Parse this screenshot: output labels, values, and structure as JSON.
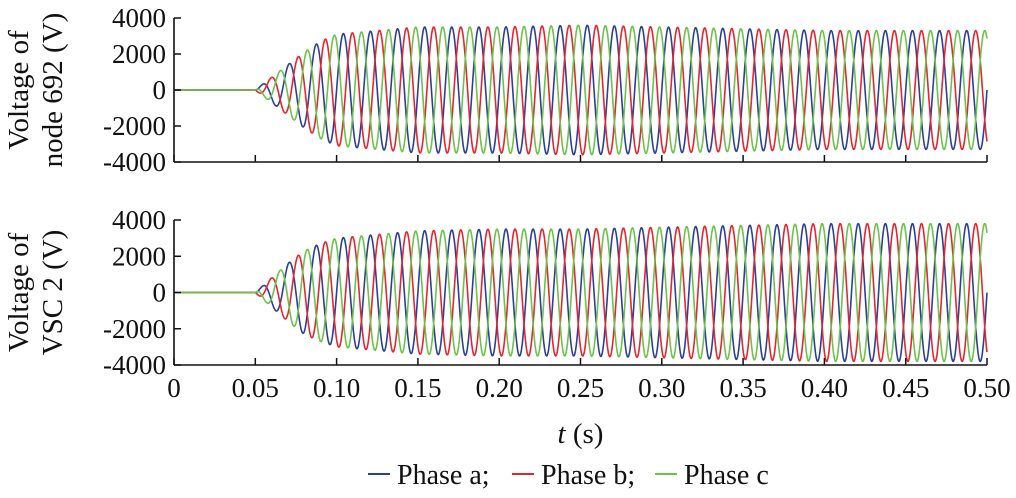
{
  "chart_data": [
    {
      "type": "line",
      "ylabel_lines": [
        "Voltage of",
        "node 692 (V)"
      ],
      "xlim": [
        0,
        0.5
      ],
      "ylim": [
        -4000,
        4000
      ],
      "yticks": [
        -4000,
        -2000,
        0,
        2000,
        4000
      ],
      "ytick_labels": [
        "-4000",
        "-2000",
        "0",
        "2000",
        "4000"
      ],
      "xticks": [
        0,
        0.05,
        0.1,
        0.15,
        0.2,
        0.25,
        0.3,
        0.35,
        0.4,
        0.45,
        0.5
      ],
      "show_xtick_labels": false,
      "grid": false,
      "waveform": {
        "frequency_hz": 60,
        "start_time_s": 0.05,
        "envelope": [
          [
            0.05,
            0
          ],
          [
            0.06,
            700
          ],
          [
            0.07,
            1400
          ],
          [
            0.08,
            2100
          ],
          [
            0.09,
            2700
          ],
          [
            0.1,
            3100
          ],
          [
            0.15,
            3500
          ],
          [
            0.2,
            3500
          ],
          [
            0.25,
            3600
          ],
          [
            0.3,
            3500
          ],
          [
            0.35,
            3400
          ],
          [
            0.4,
            3300
          ],
          [
            0.45,
            3300
          ],
          [
            0.5,
            3300
          ]
        ]
      },
      "series": [
        {
          "name": "Phase a",
          "phase_deg": 0,
          "color": "#2b3f98"
        },
        {
          "name": "Phase b",
          "phase_deg": -120,
          "color": "#e3262f"
        },
        {
          "name": "Phase c",
          "phase_deg": 120,
          "color": "#6cc24a"
        }
      ]
    },
    {
      "type": "line",
      "ylabel_lines": [
        "Voltage of",
        "VSC 2 (V)"
      ],
      "xlabel_var": "t",
      "xlabel_unit": " (s)",
      "xlim": [
        0,
        0.5
      ],
      "ylim": [
        -4000,
        4000
      ],
      "yticks": [
        -4000,
        -2000,
        0,
        2000,
        4000
      ],
      "ytick_labels": [
        "-4000",
        "-2000",
        "0",
        "2000",
        "4000"
      ],
      "xticks": [
        0,
        0.05,
        0.1,
        0.15,
        0.2,
        0.25,
        0.3,
        0.35,
        0.4,
        0.45,
        0.5
      ],
      "xtick_labels": [
        "0",
        "0.05",
        "0.10",
        "0.15",
        "0.20",
        "0.25",
        "0.30",
        "0.35",
        "0.40",
        "0.45",
        "0.50"
      ],
      "show_xtick_labels": true,
      "grid": false,
      "waveform": {
        "frequency_hz": 60,
        "start_time_s": 0.05,
        "envelope": [
          [
            0.05,
            0
          ],
          [
            0.06,
            800
          ],
          [
            0.07,
            1600
          ],
          [
            0.08,
            2300
          ],
          [
            0.09,
            2700
          ],
          [
            0.1,
            3000
          ],
          [
            0.15,
            3400
          ],
          [
            0.2,
            3500
          ],
          [
            0.25,
            3500
          ],
          [
            0.3,
            3600
          ],
          [
            0.35,
            3700
          ],
          [
            0.4,
            3800
          ],
          [
            0.45,
            3800
          ],
          [
            0.5,
            3800
          ]
        ]
      },
      "series": [
        {
          "name": "Phase a",
          "phase_deg": 0,
          "color": "#2b3f98"
        },
        {
          "name": "Phase b",
          "phase_deg": -120,
          "color": "#e3262f"
        },
        {
          "name": "Phase c",
          "phase_deg": 120,
          "color": "#6cc24a"
        }
      ]
    }
  ],
  "legend": {
    "placement": "bottom-center",
    "entries": [
      {
        "name": "Phase a",
        "text": "Phase a;",
        "color": "#2b3f98"
      },
      {
        "name": "Phase b",
        "text": "Phase b;",
        "color": "#e3262f"
      },
      {
        "name": "Phase c",
        "text": "Phase c",
        "color": "#6cc24a"
      }
    ]
  }
}
